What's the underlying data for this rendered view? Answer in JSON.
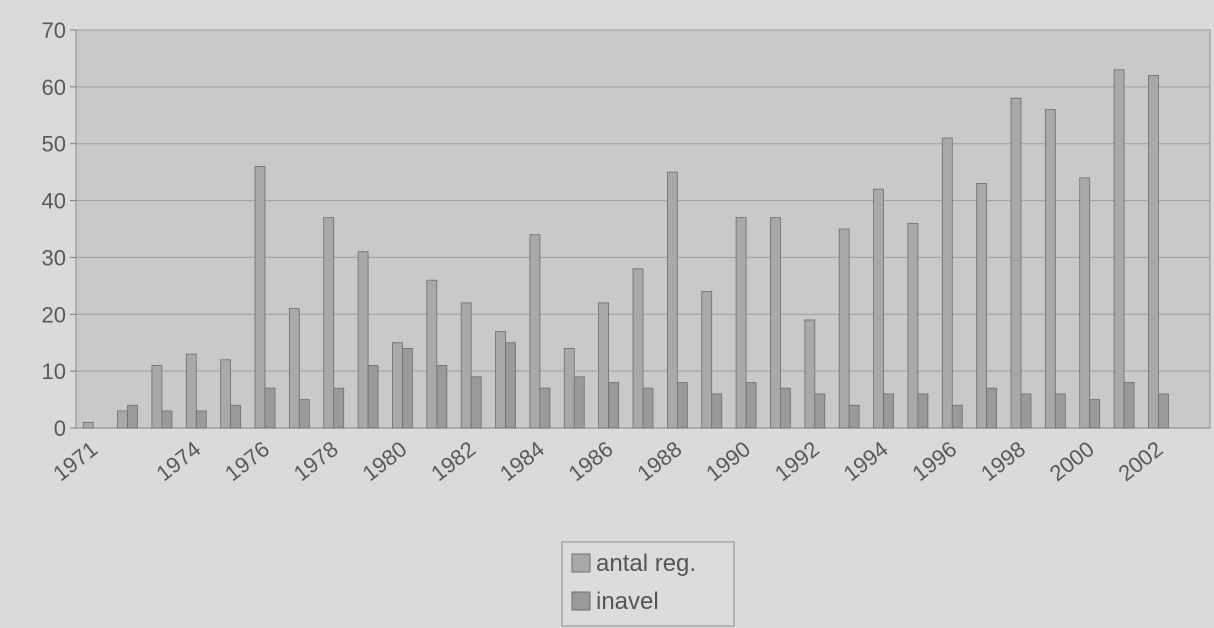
{
  "chart_data": {
    "type": "bar",
    "categories": [
      "1971",
      "1972",
      "1973",
      "1974",
      "1975",
      "1976",
      "1977",
      "1978",
      "1979",
      "1980",
      "1981",
      "1982",
      "1983",
      "1984",
      "1985",
      "1986",
      "1987",
      "1988",
      "1989",
      "1990",
      "1991",
      "1992",
      "1993",
      "1994",
      "1995",
      "1996",
      "1997",
      "1998",
      "1999",
      "2000",
      "2001",
      "2002",
      "2003"
    ],
    "x_tick_labels": [
      "1971",
      "1974",
      "1976",
      "1978",
      "1980",
      "1982",
      "1984",
      "1986",
      "1988",
      "1990",
      "1992",
      "1994",
      "1996",
      "1998",
      "2000",
      "2002"
    ],
    "series": [
      {
        "name": "antal reg.",
        "color": "#a9a9a9",
        "values": [
          1,
          3,
          11,
          13,
          12,
          46,
          21,
          37,
          31,
          15,
          26,
          22,
          17,
          34,
          14,
          22,
          28,
          45,
          24,
          37,
          37,
          19,
          35,
          42,
          36,
          51,
          43,
          58,
          56,
          44,
          63,
          62,
          0
        ]
      },
      {
        "name": "inavel",
        "color": "#9a9a9a",
        "values": [
          0,
          4,
          3,
          3,
          4,
          7,
          5,
          7,
          11,
          14,
          11,
          9,
          15,
          7,
          9,
          8,
          7,
          8,
          6,
          8,
          7,
          6,
          4,
          6,
          6,
          4,
          7,
          6,
          6,
          5,
          8,
          6,
          0
        ]
      }
    ],
    "y_ticks": [
      0,
      10,
      20,
      30,
      40,
      50,
      60,
      70
    ],
    "ylim": [
      0,
      70
    ],
    "grid": true,
    "legend_position": "bottom",
    "title": "",
    "xlabel": "",
    "ylabel": ""
  }
}
